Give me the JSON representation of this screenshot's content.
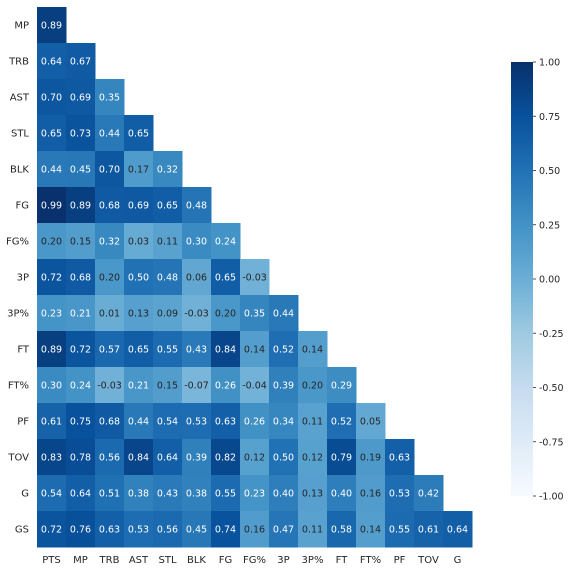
{
  "chart_data": {
    "type": "heatmap",
    "title": "",
    "xlabel": "",
    "ylabel": "",
    "x_labels": [
      "PTS",
      "MP",
      "TRB",
      "AST",
      "STL",
      "BLK",
      "FG",
      "FG%",
      "3P",
      "3P%",
      "FT",
      "FT%",
      "PF",
      "TOV",
      "G"
    ],
    "y_labels": [
      "MP",
      "TRB",
      "AST",
      "STL",
      "BLK",
      "FG",
      "FG%",
      "3P",
      "3P%",
      "FT",
      "FT%",
      "PF",
      "TOV",
      "G",
      "GS"
    ],
    "values": [
      [
        "0.89"
      ],
      [
        "0.64",
        "0.67"
      ],
      [
        "0.70",
        "0.69",
        "0.35"
      ],
      [
        "0.65",
        "0.73",
        "0.44",
        "0.65"
      ],
      [
        "0.44",
        "0.45",
        "0.70",
        "0.17",
        "0.32"
      ],
      [
        "0.99",
        "0.89",
        "0.68",
        "0.69",
        "0.65",
        "0.48"
      ],
      [
        "0.20",
        "0.15",
        "0.32",
        "0.03",
        "0.11",
        "0.30",
        "0.24"
      ],
      [
        "0.72",
        "0.68",
        "0.20",
        "0.50",
        "0.48",
        "0.06",
        "0.65",
        "-0.03"
      ],
      [
        "0.23",
        "0.21",
        "0.01",
        "0.13",
        "0.09",
        "-0.03",
        "0.20",
        "0.35",
        "0.44"
      ],
      [
        "0.89",
        "0.72",
        "0.57",
        "0.65",
        "0.55",
        "0.43",
        "0.84",
        "0.14",
        "0.52",
        "0.14"
      ],
      [
        "0.30",
        "0.24",
        "-0.03",
        "0.21",
        "0.15",
        "-0.07",
        "0.26",
        "-0.04",
        "0.39",
        "0.20",
        "0.29"
      ],
      [
        "0.61",
        "0.75",
        "0.68",
        "0.44",
        "0.54",
        "0.53",
        "0.63",
        "0.26",
        "0.34",
        "0.11",
        "0.52",
        "0.05"
      ],
      [
        "0.83",
        "0.78",
        "0.56",
        "0.84",
        "0.64",
        "0.39",
        "0.82",
        "0.12",
        "0.50",
        "0.12",
        "0.79",
        "0.19",
        "0.63"
      ],
      [
        "0.54",
        "0.64",
        "0.51",
        "0.38",
        "0.43",
        "0.38",
        "0.55",
        "0.23",
        "0.40",
        "0.13",
        "0.40",
        "0.16",
        "0.53",
        "0.42"
      ],
      [
        "0.72",
        "0.76",
        "0.63",
        "0.53",
        "0.56",
        "0.45",
        "0.74",
        "0.16",
        "0.47",
        "0.11",
        "0.58",
        "0.14",
        "0.55",
        "0.61",
        "0.64"
      ]
    ],
    "colorbar": {
      "min": -1.0,
      "max": 1.0,
      "ticks": [
        "1.00",
        "0.75",
        "0.50",
        "0.25",
        "0.00",
        "-0.25",
        "-0.50",
        "-0.75",
        "-1.00"
      ]
    },
    "colormap": [
      "#f7fbff",
      "#deebf7",
      "#c6dbef",
      "#9ecae1",
      "#6baed6",
      "#4292c6",
      "#2171b5",
      "#08519c",
      "#08306b"
    ],
    "grid": false,
    "legend": "colorbar-right"
  }
}
